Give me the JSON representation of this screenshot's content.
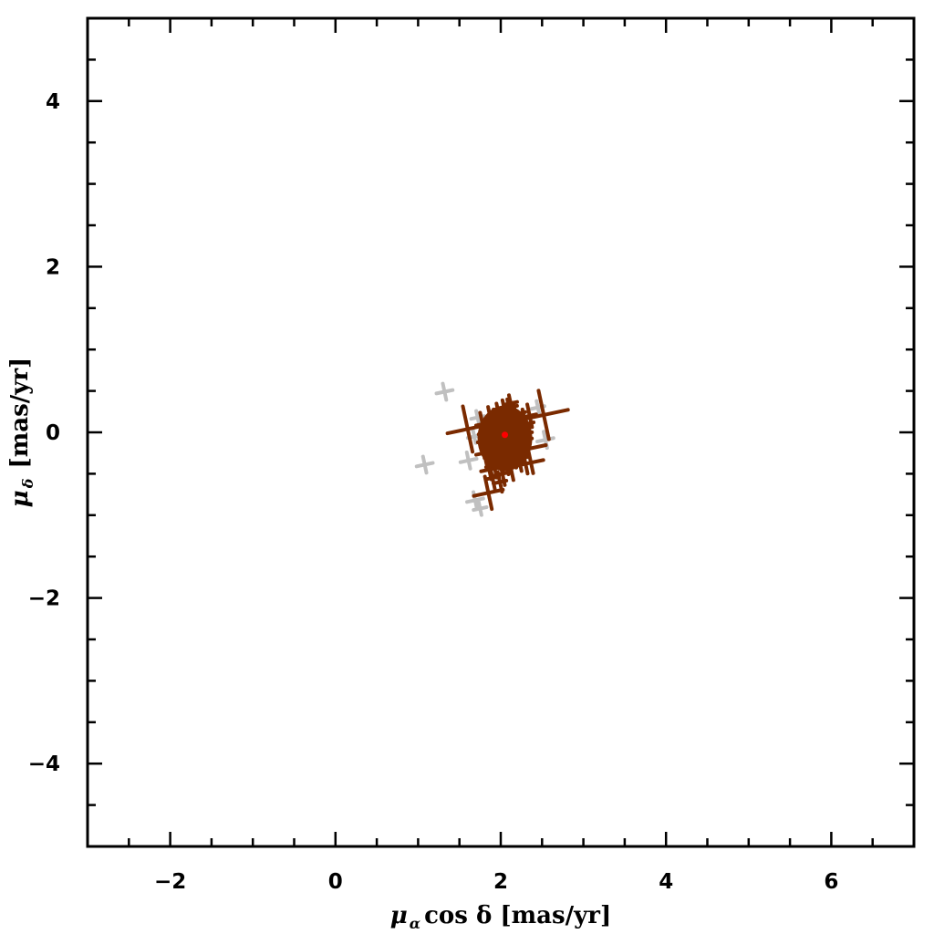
{
  "chart_data": {
    "type": "scatter",
    "title": "",
    "xlabel": {
      "symbol": "μ",
      "subscript": "α",
      "rest": "cos δ [mas/yr]"
    },
    "ylabel": {
      "symbol": "μ",
      "subscript": "δ",
      "rest": " [mas/yr]"
    },
    "xlim": [
      -3,
      7
    ],
    "ylim": [
      -5,
      5
    ],
    "xticks": [
      -2,
      0,
      2,
      4,
      6
    ],
    "yticks": [
      -4,
      -2,
      0,
      2,
      4
    ],
    "xtick_labels": [
      "−2",
      "0",
      "2",
      "4",
      "6"
    ],
    "ytick_labels": [
      "−4",
      "−2",
      "0",
      "2",
      "4"
    ],
    "minor_tick_step": 0.5,
    "grid": false,
    "colors": {
      "members": "#7a2a00",
      "non_members": "#c0c0c0",
      "mean": "#ff0000"
    },
    "series": [
      {
        "role": "non-members",
        "marker": "error-cross",
        "points": [
          [
            1.32,
            0.49,
            0.1,
            0.1
          ],
          [
            1.08,
            -0.39,
            0.1,
            0.1
          ],
          [
            1.61,
            -0.34,
            0.1,
            0.1
          ],
          [
            1.69,
            -0.82,
            0.1,
            0.1
          ],
          [
            1.75,
            -0.92,
            0.08,
            0.08
          ],
          [
            2.54,
            -0.09,
            0.1,
            0.1
          ],
          [
            1.72,
            0.18,
            0.08,
            0.08
          ],
          [
            2.45,
            0.3,
            0.08,
            0.08
          ],
          [
            1.68,
            -0.05,
            0.08,
            0.08
          ]
        ]
      },
      {
        "role": "members",
        "marker": "error-cross",
        "points": [
          [
            1.6,
            0.04,
            0.25,
            0.28
          ],
          [
            2.52,
            0.21,
            0.3,
            0.3
          ],
          [
            2.33,
            -0.2,
            0.22,
            0.3
          ],
          [
            1.85,
            -0.73,
            0.18,
            0.2
          ],
          [
            2.3,
            -0.38,
            0.22,
            0.12
          ],
          [
            2.05,
            -0.05,
            0.15,
            0.2
          ],
          [
            1.95,
            0.1,
            0.12,
            0.18
          ],
          [
            2.1,
            0.15,
            0.14,
            0.16
          ],
          [
            2.2,
            0.05,
            0.12,
            0.2
          ],
          [
            1.9,
            -0.15,
            0.14,
            0.18
          ],
          [
            2.0,
            -0.3,
            0.12,
            0.16
          ],
          [
            2.15,
            -0.25,
            0.15,
            0.18
          ],
          [
            1.85,
            0.0,
            0.12,
            0.15
          ],
          [
            2.25,
            -0.1,
            0.13,
            0.2
          ],
          [
            2.05,
            0.25,
            0.1,
            0.14
          ],
          [
            1.92,
            -0.4,
            0.1,
            0.15
          ],
          [
            2.12,
            -0.42,
            0.12,
            0.16
          ],
          [
            1.98,
            0.2,
            0.12,
            0.15
          ],
          [
            2.3,
            0.1,
            0.1,
            0.18
          ],
          [
            1.8,
            -0.25,
            0.1,
            0.14
          ],
          [
            2.08,
            -0.15,
            0.16,
            0.2
          ],
          [
            1.96,
            -0.05,
            0.14,
            0.18
          ],
          [
            2.18,
            0.22,
            0.12,
            0.14
          ],
          [
            1.88,
            0.15,
            0.1,
            0.16
          ],
          [
            2.02,
            -0.5,
            0.1,
            0.14
          ],
          [
            2.22,
            -0.32,
            0.12,
            0.15
          ],
          [
            1.9,
            -0.55,
            0.08,
            0.14
          ],
          [
            2.1,
            0.3,
            0.1,
            0.1
          ],
          [
            2.28,
            -0.02,
            0.1,
            0.16
          ],
          [
            1.82,
            -0.1,
            0.1,
            0.16
          ],
          [
            2.0,
            0.05,
            0.14,
            0.2
          ],
          [
            2.14,
            -0.05,
            0.14,
            0.2
          ],
          [
            1.94,
            -0.28,
            0.14,
            0.16
          ],
          [
            2.06,
            -0.35,
            0.12,
            0.16
          ],
          [
            2.16,
            0.08,
            0.14,
            0.18
          ],
          [
            1.99,
            -0.6,
            0.08,
            0.12
          ],
          [
            2.35,
            0.2,
            0.08,
            0.14
          ],
          [
            1.78,
            0.1,
            0.08,
            0.14
          ],
          [
            2.12,
            0.35,
            0.08,
            0.1
          ],
          [
            1.86,
            -0.45,
            0.1,
            0.12
          ]
        ]
      },
      {
        "role": "mean",
        "marker": "dot",
        "points": [
          [
            2.05,
            -0.03
          ]
        ]
      }
    ]
  }
}
